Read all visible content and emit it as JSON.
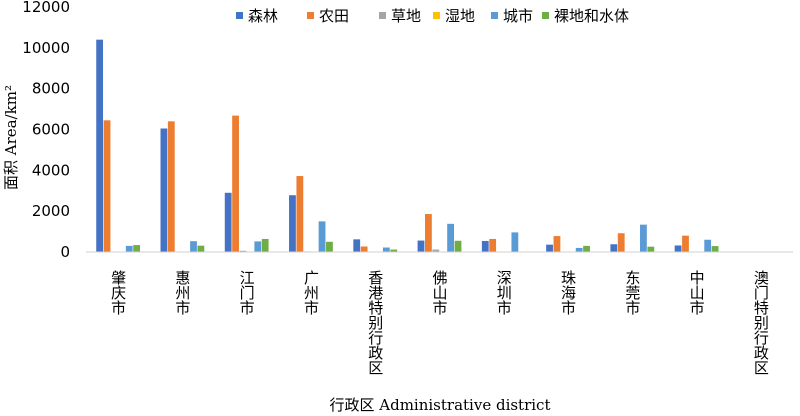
{
  "chart_data": {
    "type": "bar",
    "categories": [
      "肇庆市",
      "惠州市",
      "江门市",
      "广州市",
      "香港特别行政区",
      "佛山市",
      "深圳市",
      "珠海市",
      "东莞市",
      "中山市",
      "澳门特别行政区"
    ],
    "series": [
      {
        "name": "森林",
        "color": "#4472C4",
        "values": [
          10400,
          6050,
          2900,
          2780,
          620,
          560,
          540,
          360,
          380,
          320,
          0
        ]
      },
      {
        "name": "农田",
        "color": "#ED7D31",
        "values": [
          6450,
          6400,
          6680,
          3720,
          270,
          1860,
          640,
          780,
          920,
          800,
          0
        ]
      },
      {
        "name": "草地",
        "color": "#A5A5A5",
        "values": [
          20,
          20,
          60,
          30,
          20,
          120,
          10,
          20,
          20,
          20,
          0
        ]
      },
      {
        "name": "湿地",
        "color": "#FFC000",
        "values": [
          10,
          10,
          20,
          10,
          10,
          10,
          10,
          10,
          10,
          10,
          0
        ]
      },
      {
        "name": "城市",
        "color": "#5B9BD5",
        "values": [
          300,
          530,
          520,
          1500,
          220,
          1380,
          960,
          200,
          1340,
          600,
          10
        ]
      },
      {
        "name": "裸地和水体",
        "color": "#70AD47",
        "values": [
          340,
          310,
          640,
          500,
          120,
          550,
          0,
          300,
          260,
          290,
          0
        ]
      }
    ],
    "ylim": [
      0,
      12000
    ],
    "yticks": [
      0,
      2000,
      4000,
      6000,
      8000,
      10000,
      12000
    ],
    "ytick_labels": [
      "0",
      "2000",
      "4000",
      "6000",
      "8000",
      "10000",
      "12000"
    ],
    "ylabel": "面积 Area/km²",
    "xlabel": "行政区 Administrative district",
    "legend_position": "top",
    "grid": false
  }
}
